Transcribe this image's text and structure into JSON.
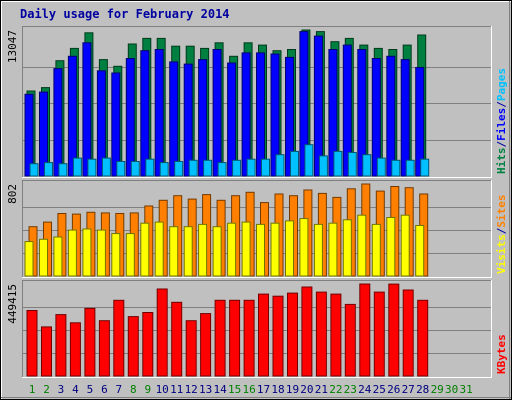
{
  "chart_data": {
    "type": "bar",
    "title": "Daily usage for February 2014",
    "colors": {
      "background": "#c0c0c0",
      "hits": "#008040",
      "files": "#0000ff",
      "pages": "#00c0ff",
      "visits": "#ffff00",
      "sites": "#ff8000",
      "kbytes": "#ff0000",
      "title": "#0000a0",
      "weekday_label": "#000080",
      "weekend_label": "#008000",
      "missing_label": "#008000"
    },
    "days": [
      "1",
      "2",
      "3",
      "4",
      "5",
      "6",
      "7",
      "8",
      "9",
      "10",
      "11",
      "12",
      "13",
      "14",
      "15",
      "16",
      "17",
      "18",
      "19",
      "20",
      "21",
      "22",
      "23",
      "24",
      "25",
      "26",
      "27",
      "28",
      "29",
      "30",
      "31"
    ],
    "weekend_days": [
      "1",
      "2",
      "8",
      "9",
      "15",
      "16",
      "22",
      "23",
      "29",
      "30"
    ],
    "days_with_data": 28,
    "panels": [
      {
        "name": "hits-files-pages",
        "ymax_label": "13047",
        "ymax": 13047,
        "side_labels": [
          {
            "text": "Hits",
            "color": "#008040"
          },
          {
            "text": "/",
            "color": "#0000a0"
          },
          {
            "text": "Files",
            "color": "#0000ff"
          },
          {
            "text": "/",
            "color": "#0000a0"
          },
          {
            "text": "Pages",
            "color": "#00c0ff"
          }
        ],
        "series": [
          {
            "name": "Hits",
            "color": "#008040",
            "values": [
              7600,
              7900,
              10300,
              11400,
              12800,
              10400,
              9800,
              11800,
              12300,
              12300,
              11600,
              11600,
              11400,
              11900,
              10700,
              11900,
              11700,
              11200,
              11300,
              13047,
              12900,
              12000,
              12300,
              11700,
              11400,
              11300,
              11700,
              12600
            ]
          },
          {
            "name": "Files",
            "color": "#0000ff",
            "values": [
              7300,
              7500,
              9600,
              10700,
              11900,
              9400,
              9200,
              10500,
              11200,
              11300,
              10200,
              10000,
              10400,
              11300,
              10100,
              11000,
              11000,
              10900,
              10600,
              12900,
              12500,
              11300,
              11700,
              11300,
              10500,
              10700,
              10400,
              9700
            ]
          },
          {
            "name": "Pages",
            "color": "#00c0ff",
            "values": [
              1100,
              1200,
              1100,
              1600,
              1500,
              1600,
              1300,
              1300,
              1500,
              1200,
              1300,
              1400,
              1400,
              1200,
              1400,
              1500,
              1500,
              1900,
              2200,
              2800,
              1800,
              2200,
              2100,
              1900,
              1600,
              1400,
              1400,
              1500
            ]
          }
        ]
      },
      {
        "name": "sites-visits",
        "ymax_label": "802",
        "ymax": 802,
        "side_labels": [
          {
            "text": "Visits",
            "color": "#ffff00"
          },
          {
            "text": "/",
            "color": "#0000a0"
          },
          {
            "text": "Sites",
            "color": "#ff8000"
          }
        ],
        "series": [
          {
            "name": "Sites",
            "color": "#ff8000",
            "values": [
              430,
              470,
              545,
              540,
              555,
              550,
              545,
              550,
              610,
              660,
              700,
              670,
              710,
              660,
              700,
              730,
              640,
              715,
              700,
              750,
              720,
              685,
              760,
              802,
              740,
              780,
              770,
              715
            ]
          },
          {
            "name": "Visits",
            "color": "#ffff00",
            "values": [
              300,
              320,
              340,
              400,
              410,
              400,
              370,
              370,
              460,
              470,
              430,
              430,
              450,
              430,
              460,
              470,
              450,
              460,
              480,
              500,
              450,
              460,
              490,
              530,
              450,
              510,
              530,
              440
            ]
          }
        ]
      },
      {
        "name": "kbytes",
        "ymax_label": "449415",
        "ymax": 449415,
        "side_labels": [
          {
            "text": "KBytes",
            "color": "#ff0000"
          }
        ],
        "series": [
          {
            "name": "KBytes",
            "color": "#ff0000",
            "values": [
              320000,
              240000,
              300000,
              260000,
              330000,
              270000,
              370000,
              290000,
              310000,
              425000,
              360000,
              270000,
              305000,
              370000,
              370000,
              370000,
              400000,
              390000,
              405000,
              435000,
              410000,
              400000,
              350000,
              449415,
              410000,
              449000,
              420000,
              370000
            ]
          }
        ]
      }
    ]
  }
}
